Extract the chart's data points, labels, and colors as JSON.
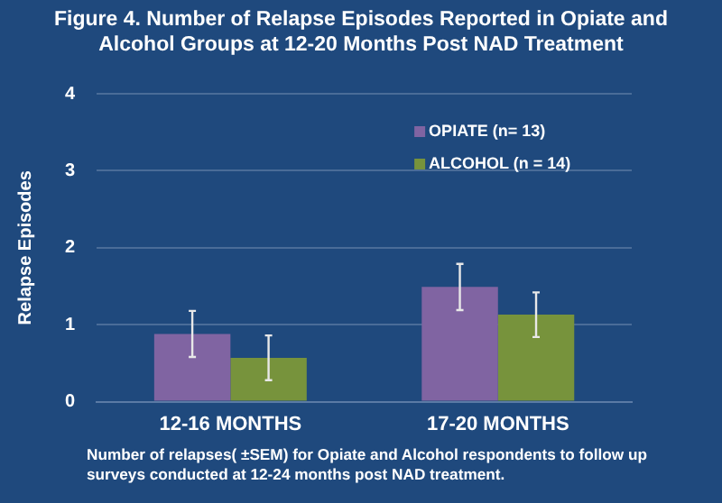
{
  "chart_data": {
    "type": "bar",
    "title": "Figure 4.  Number of Relapse Episodes Reported in Opiate and Alcohol Groups  at 12-20 Months Post NAD Treatment",
    "ylabel": "Relapse Episodes",
    "categories": [
      "12-16 MONTHS",
      "17-20 MONTHS"
    ],
    "series": [
      {
        "name": "OPIATE (n= 13)",
        "color": "#8064a2",
        "values": [
          0.88,
          1.49
        ],
        "errors": [
          0.3,
          0.3
        ]
      },
      {
        "name": "ALCOHOL (n = 14)",
        "color": "#77933c",
        "values": [
          0.57,
          1.13
        ],
        "errors": [
          0.29,
          0.29
        ]
      }
    ],
    "ylim": [
      0,
      4
    ],
    "yticks": [
      0,
      1,
      2,
      3,
      4
    ],
    "grid": "y",
    "legend": "top right",
    "annotations": [
      "Number of relapses( ±SEM) for Opiate and Alcohol respondents to follow up surveys conducted at 12-24 months post NAD treatment."
    ]
  }
}
